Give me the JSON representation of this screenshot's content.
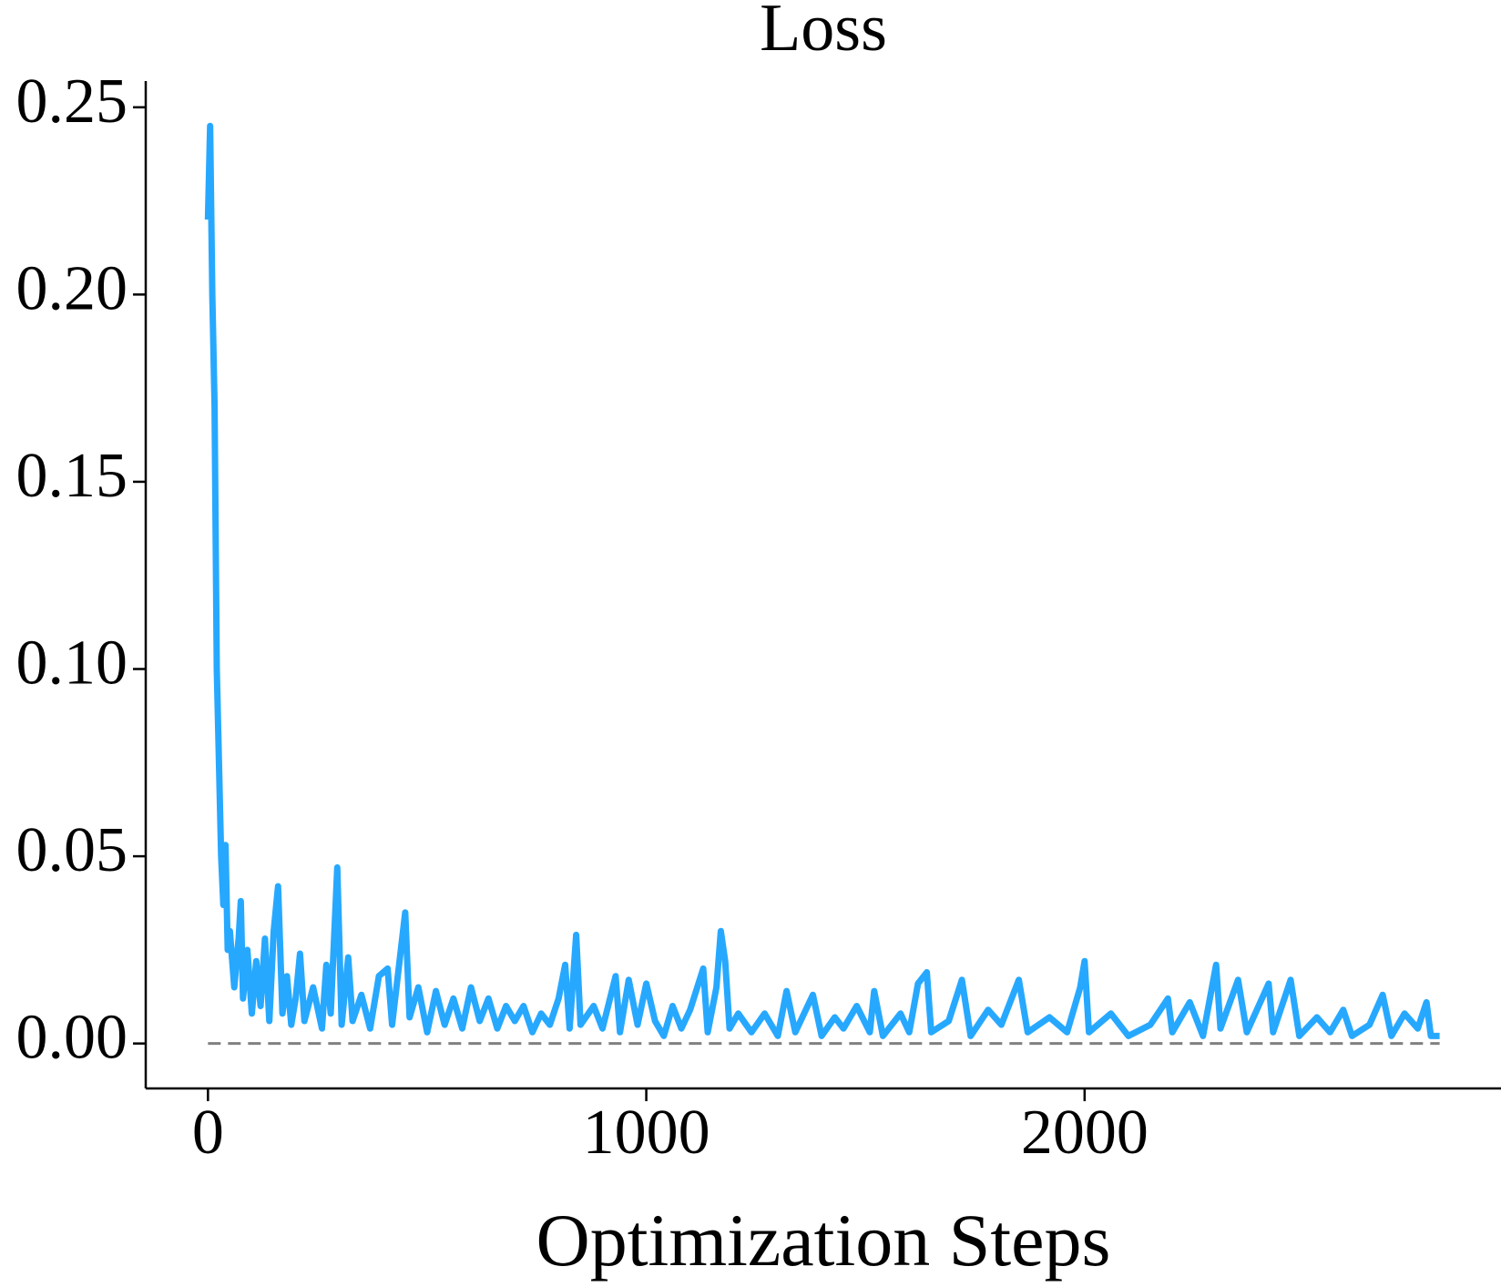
{
  "chart_data": {
    "type": "line",
    "title": "Loss",
    "x_label": "Optimization Steps",
    "color": "#27a8ff",
    "reference_line": 0,
    "reference_color": "#808080",
    "x": [
      0,
      5,
      10,
      15,
      20,
      25,
      30,
      35,
      40,
      45,
      50,
      60,
      70,
      75,
      80,
      90,
      100,
      110,
      120,
      130,
      140,
      150,
      160,
      170,
      180,
      190,
      200,
      210,
      220,
      240,
      260,
      270,
      280,
      295,
      305,
      320,
      330,
      350,
      370,
      390,
      410,
      420,
      450,
      460,
      480,
      500,
      520,
      540,
      560,
      580,
      600,
      620,
      640,
      660,
      680,
      700,
      720,
      740,
      760,
      780,
      800,
      815,
      825,
      840,
      850,
      880,
      900,
      930,
      940,
      960,
      980,
      1000,
      1020,
      1040,
      1060,
      1080,
      1100,
      1130,
      1140,
      1160,
      1170,
      1180,
      1190,
      1210,
      1240,
      1270,
      1300,
      1320,
      1340,
      1380,
      1400,
      1430,
      1450,
      1480,
      1510,
      1520,
      1540,
      1580,
      1600,
      1620,
      1640,
      1650,
      1690,
      1720,
      1740,
      1780,
      1810,
      1850,
      1870,
      1920,
      1960,
      1990,
      2000,
      2010,
      2060,
      2100,
      2150,
      2190,
      2200,
      2240,
      2270,
      2300,
      2310,
      2350,
      2370,
      2420,
      2430,
      2470,
      2490,
      2530,
      2560,
      2590,
      2610,
      2650,
      2680,
      2700,
      2730,
      2760,
      2780,
      2790,
      2810
    ],
    "values": [
      0.22,
      0.245,
      0.2,
      0.17,
      0.1,
      0.075,
      0.05,
      0.037,
      0.053,
      0.025,
      0.03,
      0.015,
      0.028,
      0.038,
      0.012,
      0.025,
      0.008,
      0.022,
      0.01,
      0.028,
      0.006,
      0.03,
      0.042,
      0.008,
      0.018,
      0.005,
      0.012,
      0.024,
      0.006,
      0.015,
      0.004,
      0.021,
      0.008,
      0.047,
      0.005,
      0.023,
      0.006,
      0.013,
      0.004,
      0.018,
      0.02,
      0.005,
      0.035,
      0.007,
      0.015,
      0.003,
      0.014,
      0.005,
      0.012,
      0.004,
      0.015,
      0.006,
      0.012,
      0.004,
      0.01,
      0.006,
      0.01,
      0.003,
      0.008,
      0.005,
      0.012,
      0.021,
      0.004,
      0.029,
      0.005,
      0.01,
      0.004,
      0.018,
      0.003,
      0.017,
      0.005,
      0.016,
      0.006,
      0.002,
      0.01,
      0.004,
      0.009,
      0.02,
      0.003,
      0.015,
      0.03,
      0.022,
      0.004,
      0.008,
      0.003,
      0.008,
      0.002,
      0.014,
      0.003,
      0.013,
      0.002,
      0.007,
      0.004,
      0.01,
      0.003,
      0.014,
      0.002,
      0.008,
      0.003,
      0.016,
      0.019,
      0.003,
      0.006,
      0.017,
      0.002,
      0.009,
      0.005,
      0.017,
      0.003,
      0.007,
      0.003,
      0.015,
      0.022,
      0.003,
      0.008,
      0.002,
      0.005,
      0.012,
      0.003,
      0.011,
      0.002,
      0.021,
      0.004,
      0.017,
      0.003,
      0.016,
      0.003,
      0.017,
      0.002,
      0.007,
      0.003,
      0.009,
      0.002,
      0.005,
      0.013,
      0.002,
      0.008,
      0.004,
      0.011,
      0.002,
      0.002
    ],
    "xlim": [
      -142,
      2950
    ],
    "ylim": [
      -0.012,
      0.257
    ],
    "xticks": [
      0,
      1000,
      2000
    ],
    "yticks": [
      {
        "value": 0,
        "label": "0.00"
      },
      {
        "value": 0.05,
        "label": "0.05"
      },
      {
        "value": 0.1,
        "label": "0.10"
      },
      {
        "value": 0.15,
        "label": "0.15"
      },
      {
        "value": 0.2,
        "label": "0.20"
      },
      {
        "value": 0.25,
        "label": "0.25"
      }
    ]
  }
}
